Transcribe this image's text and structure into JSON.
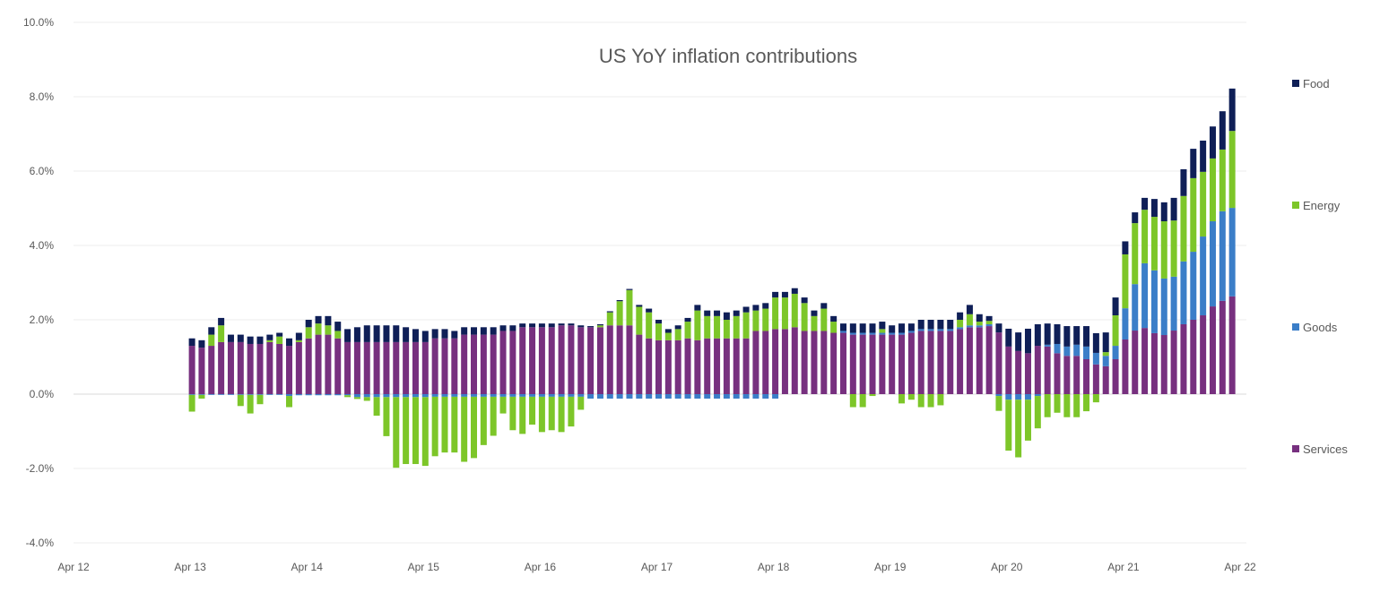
{
  "chart_data": {
    "type": "bar",
    "stacked": true,
    "title": "US YoY inflation contributions",
    "xlabel": "",
    "ylabel": "",
    "ylim": [
      -4,
      10
    ],
    "y_ticks": [
      "-4.0%",
      "-2.0%",
      "0.0%",
      "2.0%",
      "4.0%",
      "6.0%",
      "8.0%",
      "10.0%"
    ],
    "x_ticks": [
      "Apr 12",
      "Apr 13",
      "Apr 14",
      "Apr 15",
      "Apr 16",
      "Apr 17",
      "Apr 18",
      "Apr 19",
      "Apr 20",
      "Apr 21",
      "Apr 22"
    ],
    "grid": true,
    "legend_position": "right",
    "categories": [
      "Apr 13",
      "May 13",
      "Jun 13",
      "Jul 13",
      "Aug 13",
      "Sep 13",
      "Oct 13",
      "Nov 13",
      "Dec 13",
      "Jan 14",
      "Feb 14",
      "Mar 14",
      "Apr 14",
      "May 14",
      "Jun 14",
      "Jul 14",
      "Aug 14",
      "Sep 14",
      "Oct 14",
      "Nov 14",
      "Dec 14",
      "Jan 15",
      "Feb 15",
      "Mar 15",
      "Apr 15",
      "May 15",
      "Jun 15",
      "Jul 15",
      "Aug 15",
      "Sep 15",
      "Oct 15",
      "Nov 15",
      "Dec 15",
      "Jan 16",
      "Feb 16",
      "Mar 16",
      "Apr 16",
      "May 16",
      "Jun 16",
      "Jul 16",
      "Aug 16",
      "Sep 16",
      "Oct 16",
      "Nov 16",
      "Dec 16",
      "Jan 17",
      "Feb 17",
      "Mar 17",
      "Apr 17",
      "May 17",
      "Jun 17",
      "Jul 17",
      "Aug 17",
      "Sep 17",
      "Oct 17",
      "Nov 17",
      "Dec 17",
      "Jan 18",
      "Feb 18",
      "Mar 18",
      "Apr 18",
      "May 18",
      "Jun 18",
      "Jul 18",
      "Aug 18",
      "Sep 18",
      "Oct 18",
      "Nov 18",
      "Dec 18",
      "Jan 19",
      "Feb 19",
      "Mar 19",
      "Apr 19",
      "May 19",
      "Jun 19",
      "Jul 19",
      "Aug 19",
      "Sep 19",
      "Oct 19",
      "Nov 19",
      "Dec 19",
      "Jan 20",
      "Feb 20",
      "Mar 20",
      "Apr 20",
      "May 20",
      "Jun 20",
      "Jul 20",
      "Aug 20",
      "Sep 20",
      "Oct 20",
      "Nov 20",
      "Dec 20",
      "Jan 21",
      "Feb 21",
      "Mar 21",
      "Apr 21",
      "May 21",
      "Jun 21",
      "Jul 21",
      "Aug 21",
      "Sep 21",
      "Oct 21",
      "Nov 21",
      "Dec 21",
      "Jan 22",
      "Feb 22",
      "Mar 22"
    ],
    "series": [
      {
        "name": "Services",
        "color": "#77307f",
        "values": [
          1.3,
          1.25,
          1.3,
          1.4,
          1.4,
          1.4,
          1.35,
          1.35,
          1.4,
          1.35,
          1.3,
          1.4,
          1.5,
          1.6,
          1.6,
          1.5,
          1.4,
          1.4,
          1.4,
          1.4,
          1.4,
          1.4,
          1.4,
          1.4,
          1.4,
          1.5,
          1.5,
          1.5,
          1.6,
          1.6,
          1.6,
          1.6,
          1.7,
          1.7,
          1.8,
          1.8,
          1.8,
          1.8,
          1.85,
          1.85,
          1.8,
          1.8,
          1.8,
          1.85,
          1.85,
          1.85,
          1.6,
          1.5,
          1.45,
          1.45,
          1.45,
          1.5,
          1.45,
          1.5,
          1.5,
          1.5,
          1.5,
          1.5,
          1.7,
          1.7,
          1.75,
          1.75,
          1.8,
          1.7,
          1.7,
          1.7,
          1.65,
          1.65,
          1.6,
          1.6,
          1.6,
          1.6,
          1.6,
          1.6,
          1.65,
          1.7,
          1.7,
          1.7,
          1.7,
          1.75,
          1.8,
          1.8,
          1.83,
          1.66,
          1.28,
          1.16,
          1.1,
          1.3,
          1.28,
          1.1,
          1.03,
          1.03,
          0.94,
          0.8,
          0.75,
          0.94,
          1.47,
          1.71,
          1.78,
          1.64,
          1.59,
          1.71,
          1.88,
          2.0,
          2.12,
          2.36,
          2.51,
          2.63
        ]
      },
      {
        "name": "Goods",
        "color": "#3b7ec8",
        "values": [
          -0.02,
          -0.02,
          -0.02,
          -0.02,
          -0.02,
          -0.02,
          -0.02,
          -0.02,
          -0.02,
          -0.02,
          -0.05,
          -0.03,
          -0.03,
          -0.03,
          -0.03,
          -0.03,
          -0.03,
          -0.08,
          -0.08,
          -0.08,
          -0.08,
          -0.08,
          -0.08,
          -0.08,
          -0.08,
          -0.07,
          -0.07,
          -0.07,
          -0.07,
          -0.07,
          -0.07,
          -0.07,
          -0.07,
          -0.07,
          -0.07,
          -0.07,
          -0.07,
          -0.07,
          -0.07,
          -0.07,
          -0.07,
          -0.12,
          -0.12,
          -0.12,
          -0.12,
          -0.12,
          -0.12,
          -0.12,
          -0.12,
          -0.12,
          -0.12,
          -0.12,
          -0.12,
          -0.12,
          -0.12,
          -0.12,
          -0.12,
          -0.12,
          -0.12,
          -0.12,
          -0.12,
          0,
          0,
          0,
          0,
          0,
          0,
          0.05,
          0.05,
          0.05,
          0.05,
          0.05,
          0.05,
          0.05,
          0.05,
          0.05,
          0.05,
          0.05,
          0.05,
          0.05,
          0.05,
          0.05,
          0.05,
          -0.05,
          -0.15,
          -0.15,
          -0.15,
          -0.05,
          0.05,
          0.25,
          0.25,
          0.3,
          0.34,
          0.31,
          0.28,
          0.36,
          0.84,
          1.25,
          1.74,
          1.69,
          1.52,
          1.45,
          1.69,
          1.83,
          2.12,
          2.29,
          2.41,
          2.38
        ]
      },
      {
        "name": "Energy",
        "color": "#7dc629",
        "values": [
          -0.45,
          -0.1,
          0.3,
          0.45,
          0,
          -0.3,
          -0.5,
          -0.25,
          0.05,
          0.2,
          -0.3,
          0.05,
          0.3,
          0.3,
          0.25,
          0.2,
          -0.05,
          -0.05,
          -0.1,
          -0.5,
          -1.05,
          -1.9,
          -1.8,
          -1.8,
          -1.85,
          -1.6,
          -1.5,
          -1.5,
          -1.75,
          -1.65,
          -1.3,
          -1.05,
          -0.45,
          -0.9,
          -1.0,
          -0.75,
          -0.95,
          -0.9,
          -0.95,
          -0.8,
          -0.35,
          0,
          0.05,
          0.35,
          0.65,
          0.95,
          0.75,
          0.7,
          0.45,
          0.2,
          0.3,
          0.45,
          0.8,
          0.6,
          0.6,
          0.5,
          0.6,
          0.7,
          0.55,
          0.6,
          0.85,
          0.85,
          0.9,
          0.75,
          0.4,
          0.6,
          0.3,
          0,
          -0.35,
          -0.35,
          -0.05,
          0.1,
          0,
          -0.25,
          -0.15,
          -0.35,
          -0.35,
          -0.3,
          0,
          0.2,
          0.3,
          0.1,
          0.09,
          -0.4,
          -1.37,
          -1.55,
          -1.1,
          -0.87,
          -0.62,
          -0.5,
          -0.62,
          -0.62,
          -0.46,
          -0.22,
          0.1,
          0.82,
          1.45,
          1.64,
          1.44,
          1.44,
          1.54,
          1.51,
          1.76,
          1.98,
          1.74,
          1.69,
          1.66,
          2.07
        ]
      },
      {
        "name": "Food",
        "color": "#0f1f57",
        "values": [
          0.2,
          0.2,
          0.2,
          0.2,
          0.2,
          0.2,
          0.2,
          0.2,
          0.15,
          0.1,
          0.2,
          0.2,
          0.2,
          0.2,
          0.25,
          0.25,
          0.35,
          0.4,
          0.45,
          0.45,
          0.45,
          0.45,
          0.4,
          0.35,
          0.3,
          0.25,
          0.25,
          0.2,
          0.2,
          0.2,
          0.2,
          0.2,
          0.15,
          0.15,
          0.1,
          0.1,
          0.1,
          0.1,
          0.05,
          0.05,
          0.05,
          0.03,
          0.03,
          0.03,
          0.03,
          0.03,
          0.05,
          0.1,
          0.1,
          0.1,
          0.1,
          0.1,
          0.15,
          0.15,
          0.15,
          0.2,
          0.15,
          0.15,
          0.15,
          0.15,
          0.15,
          0.15,
          0.15,
          0.15,
          0.15,
          0.15,
          0.15,
          0.2,
          0.25,
          0.25,
          0.25,
          0.2,
          0.2,
          0.25,
          0.2,
          0.25,
          0.25,
          0.25,
          0.25,
          0.2,
          0.25,
          0.2,
          0.13,
          0.24,
          0.48,
          0.5,
          0.66,
          0.58,
          0.57,
          0.53,
          0.55,
          0.5,
          0.55,
          0.53,
          0.53,
          0.48,
          0.35,
          0.29,
          0.32,
          0.48,
          0.51,
          0.61,
          0.72,
          0.79,
          0.84,
          0.86,
          1.03,
          1.14
        ]
      }
    ],
    "legend_order": [
      "Food",
      "Energy",
      "Goods",
      "Services"
    ]
  }
}
